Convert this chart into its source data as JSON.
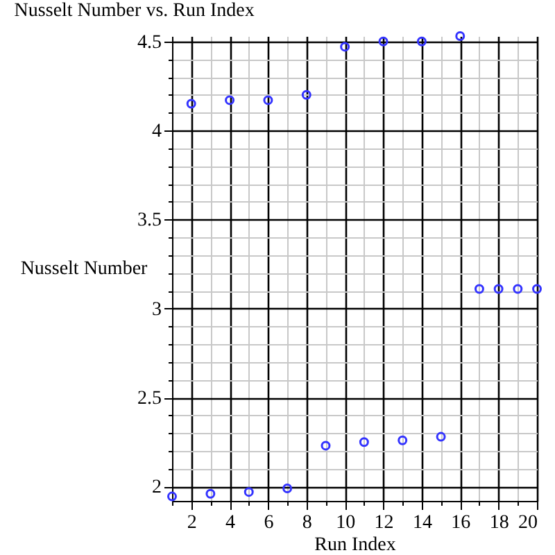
{
  "chart_data": {
    "type": "scatter",
    "title": "Nusselt Number vs. Run Index",
    "xlabel": "Run Index",
    "ylabel": "Nusselt Number",
    "x": [
      1,
      2,
      3,
      4,
      5,
      6,
      7,
      8,
      9,
      10,
      11,
      12,
      13,
      14,
      15,
      16,
      17,
      18,
      19,
      20
    ],
    "series": [
      {
        "color": "#3333ff",
        "values": [
          1.945,
          4.15,
          1.96,
          4.17,
          1.97,
          4.17,
          1.99,
          4.2,
          2.23,
          4.47,
          2.25,
          4.5,
          2.26,
          4.5,
          2.28,
          4.53,
          3.11,
          3.11,
          3.11,
          3.11
        ]
      }
    ],
    "marker": "circle",
    "grid": true,
    "xlim": [
      1,
      20
    ],
    "ylim": [
      1.92,
      4.53
    ],
    "xticks": [
      {
        "value": 1,
        "label": null
      },
      2,
      {
        "value": 3,
        "label": null
      },
      4,
      {
        "value": 5,
        "label": null
      },
      6,
      {
        "value": 7,
        "label": null
      },
      8,
      {
        "value": 9,
        "label": null
      },
      10,
      {
        "value": 11,
        "label": null
      },
      12,
      {
        "value": 13,
        "label": null
      },
      14,
      {
        "value": 15,
        "label": null
      },
      16,
      {
        "value": 17,
        "label": null
      },
      18,
      {
        "value": 19,
        "label": null
      },
      20
    ],
    "yticks": [
      2,
      {
        "value": 2.1,
        "label": null
      },
      {
        "value": 2.2,
        "label": null
      },
      {
        "value": 2.3,
        "label": null
      },
      {
        "value": 2.4,
        "label": null
      },
      2.5,
      {
        "value": 2.6,
        "label": null
      },
      {
        "value": 2.7,
        "label": null
      },
      {
        "value": 2.8,
        "label": null
      },
      {
        "value": 2.9,
        "label": null
      },
      3,
      {
        "value": 3.1,
        "label": null
      },
      {
        "value": 3.2,
        "label": null
      },
      {
        "value": 3.3,
        "label": null
      },
      {
        "value": 3.4,
        "label": null
      },
      3.5,
      {
        "value": 3.6,
        "label": null
      },
      {
        "value": 3.7,
        "label": null
      },
      {
        "value": 3.8,
        "label": null
      },
      {
        "value": 3.9,
        "label": null
      },
      4,
      {
        "value": 4.1,
        "label": null
      },
      {
        "value": 4.2,
        "label": null
      },
      {
        "value": 4.3,
        "label": null
      },
      {
        "value": 4.4,
        "label": null
      },
      4.5
    ]
  }
}
